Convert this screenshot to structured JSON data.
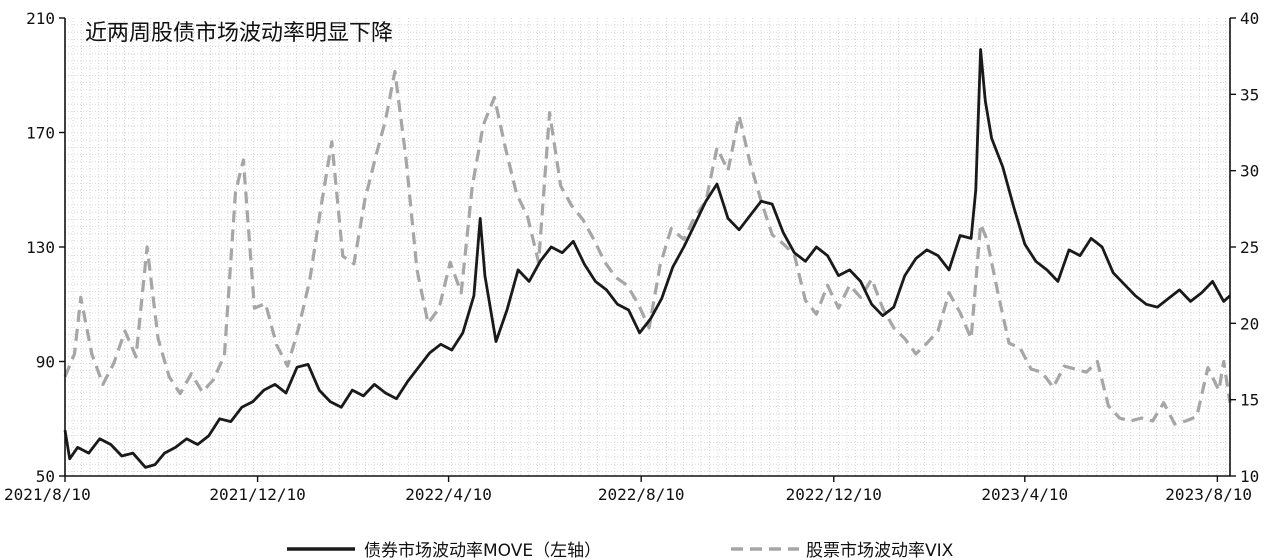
{
  "chart_data": {
    "type": "line",
    "title": "近两周股债市场波动率明显下降",
    "x_ticks": [
      "2021/8/10",
      "2021/12/10",
      "2022/4/10",
      "2022/8/10",
      "2022/12/10",
      "2023/4/10",
      "2023/8/10"
    ],
    "x_range": [
      "2021/8/10",
      "2023/8/18"
    ],
    "y_left": {
      "ylim": [
        50,
        210
      ],
      "ticks": [
        50,
        90,
        130,
        170,
        210
      ]
    },
    "y_right": {
      "ylim": [
        10,
        40
      ],
      "ticks": [
        10,
        15,
        20,
        25,
        30,
        35,
        40
      ]
    },
    "grid": true,
    "legend_position": "bottom",
    "series": [
      {
        "name": "债券市场波动率MOVE（左轴）",
        "axis": "left",
        "color": "#1a1a1a",
        "style": "solid",
        "points": [
          [
            "2021-08-10",
            66
          ],
          [
            "2021-08-13",
            56
          ],
          [
            "2021-08-18",
            60
          ],
          [
            "2021-08-25",
            58
          ],
          [
            "2021-09-01",
            63
          ],
          [
            "2021-09-08",
            61
          ],
          [
            "2021-09-15",
            57
          ],
          [
            "2021-09-22",
            58
          ],
          [
            "2021-09-30",
            53
          ],
          [
            "2021-10-06",
            54
          ],
          [
            "2021-10-12",
            58
          ],
          [
            "2021-10-19",
            60
          ],
          [
            "2021-10-26",
            63
          ],
          [
            "2021-11-02",
            61
          ],
          [
            "2021-11-09",
            64
          ],
          [
            "2021-11-16",
            70
          ],
          [
            "2021-11-23",
            69
          ],
          [
            "2021-11-30",
            74
          ],
          [
            "2021-12-07",
            76
          ],
          [
            "2021-12-14",
            80
          ],
          [
            "2021-12-21",
            82
          ],
          [
            "2021-12-28",
            79
          ],
          [
            "2022-01-04",
            88
          ],
          [
            "2022-01-11",
            89
          ],
          [
            "2022-01-18",
            80
          ],
          [
            "2022-01-25",
            76
          ],
          [
            "2022-02-01",
            74
          ],
          [
            "2022-02-08",
            80
          ],
          [
            "2022-02-15",
            78
          ],
          [
            "2022-02-22",
            82
          ],
          [
            "2022-03-01",
            79
          ],
          [
            "2022-03-08",
            77
          ],
          [
            "2022-03-15",
            83
          ],
          [
            "2022-03-22",
            88
          ],
          [
            "2022-03-29",
            93
          ],
          [
            "2022-04-05",
            96
          ],
          [
            "2022-04-12",
            94
          ],
          [
            "2022-04-19",
            100
          ],
          [
            "2022-04-26",
            113
          ],
          [
            "2022-04-30",
            140
          ],
          [
            "2022-05-03",
            120
          ],
          [
            "2022-05-10",
            97
          ],
          [
            "2022-05-17",
            108
          ],
          [
            "2022-05-24",
            122
          ],
          [
            "2022-05-31",
            118
          ],
          [
            "2022-06-07",
            125
          ],
          [
            "2022-06-14",
            130
          ],
          [
            "2022-06-21",
            128
          ],
          [
            "2022-06-28",
            132
          ],
          [
            "2022-07-05",
            124
          ],
          [
            "2022-07-12",
            118
          ],
          [
            "2022-07-19",
            115
          ],
          [
            "2022-07-26",
            110
          ],
          [
            "2022-08-02",
            108
          ],
          [
            "2022-08-09",
            100
          ],
          [
            "2022-08-16",
            105
          ],
          [
            "2022-08-23",
            112
          ],
          [
            "2022-08-30",
            123
          ],
          [
            "2022-09-06",
            130
          ],
          [
            "2022-09-13",
            138
          ],
          [
            "2022-09-20",
            146
          ],
          [
            "2022-09-27",
            152
          ],
          [
            "2022-10-04",
            140
          ],
          [
            "2022-10-11",
            136
          ],
          [
            "2022-10-18",
            141
          ],
          [
            "2022-10-25",
            146
          ],
          [
            "2022-11-01",
            145
          ],
          [
            "2022-11-08",
            135
          ],
          [
            "2022-11-15",
            128
          ],
          [
            "2022-11-22",
            125
          ],
          [
            "2022-11-29",
            130
          ],
          [
            "2022-12-06",
            127
          ],
          [
            "2022-12-13",
            120
          ],
          [
            "2022-12-20",
            122
          ],
          [
            "2022-12-27",
            118
          ],
          [
            "2023-01-03",
            110
          ],
          [
            "2023-01-10",
            106
          ],
          [
            "2023-01-17",
            109
          ],
          [
            "2023-01-24",
            120
          ],
          [
            "2023-01-31",
            126
          ],
          [
            "2023-02-07",
            129
          ],
          [
            "2023-02-14",
            127
          ],
          [
            "2023-02-21",
            122
          ],
          [
            "2023-02-28",
            134
          ],
          [
            "2023-03-07",
            133
          ],
          [
            "2023-03-10",
            150
          ],
          [
            "2023-03-13",
            199
          ],
          [
            "2023-03-16",
            181
          ],
          [
            "2023-03-20",
            168
          ],
          [
            "2023-03-27",
            158
          ],
          [
            "2023-04-03",
            144
          ],
          [
            "2023-04-10",
            131
          ],
          [
            "2023-04-17",
            125
          ],
          [
            "2023-04-24",
            122
          ],
          [
            "2023-05-01",
            118
          ],
          [
            "2023-05-08",
            129
          ],
          [
            "2023-05-15",
            127
          ],
          [
            "2023-05-22",
            133
          ],
          [
            "2023-05-29",
            130
          ],
          [
            "2023-06-05",
            121
          ],
          [
            "2023-06-12",
            117
          ],
          [
            "2023-06-19",
            113
          ],
          [
            "2023-06-26",
            110
          ],
          [
            "2023-07-03",
            109
          ],
          [
            "2023-07-10",
            112
          ],
          [
            "2023-07-17",
            115
          ],
          [
            "2023-07-24",
            111
          ],
          [
            "2023-07-31",
            114
          ],
          [
            "2023-08-07",
            118
          ],
          [
            "2023-08-14",
            111
          ],
          [
            "2023-08-18",
            113
          ]
        ]
      },
      {
        "name": "股票市场波动率VIX",
        "axis": "right",
        "color": "#a6a6a6",
        "style": "dashed",
        "points": [
          [
            "2021-08-10",
            16.5
          ],
          [
            "2021-08-16",
            18
          ],
          [
            "2021-08-20",
            21.7
          ],
          [
            "2021-08-27",
            18
          ],
          [
            "2021-09-03",
            16
          ],
          [
            "2021-09-10",
            17.4
          ],
          [
            "2021-09-17",
            19.5
          ],
          [
            "2021-09-24",
            17.8
          ],
          [
            "2021-10-01",
            25
          ],
          [
            "2021-10-08",
            19
          ],
          [
            "2021-10-15",
            16.5
          ],
          [
            "2021-10-22",
            15.4
          ],
          [
            "2021-10-29",
            16.7
          ],
          [
            "2021-11-05",
            15.5
          ],
          [
            "2021-11-12",
            16.3
          ],
          [
            "2021-11-19",
            17.9
          ],
          [
            "2021-11-26",
            28.6
          ],
          [
            "2021-12-01",
            30.7
          ],
          [
            "2021-12-08",
            21
          ],
          [
            "2021-12-15",
            21.3
          ],
          [
            "2021-12-22",
            18.6
          ],
          [
            "2021-12-29",
            17.2
          ],
          [
            "2022-01-05",
            19.7
          ],
          [
            "2022-01-12",
            22.8
          ],
          [
            "2022-01-19",
            27.5
          ],
          [
            "2022-01-26",
            31.9
          ],
          [
            "2022-02-02",
            24.4
          ],
          [
            "2022-02-09",
            23.9
          ],
          [
            "2022-02-16",
            28.1
          ],
          [
            "2022-02-23",
            31
          ],
          [
            "2022-03-01",
            33.3
          ],
          [
            "2022-03-07",
            36.5
          ],
          [
            "2022-03-14",
            30.8
          ],
          [
            "2022-03-21",
            23.5
          ],
          [
            "2022-03-28",
            20
          ],
          [
            "2022-04-04",
            21
          ],
          [
            "2022-04-11",
            24
          ],
          [
            "2022-04-18",
            22
          ],
          [
            "2022-04-25",
            29
          ],
          [
            "2022-05-02",
            33
          ],
          [
            "2022-05-09",
            34.8
          ],
          [
            "2022-05-16",
            31.5
          ],
          [
            "2022-05-23",
            28.5
          ],
          [
            "2022-05-30",
            27
          ],
          [
            "2022-06-06",
            24
          ],
          [
            "2022-06-13",
            33.8
          ],
          [
            "2022-06-20",
            29
          ],
          [
            "2022-06-27",
            27.7
          ],
          [
            "2022-07-04",
            26.8
          ],
          [
            "2022-07-11",
            25.5
          ],
          [
            "2022-07-18",
            24
          ],
          [
            "2022-07-25",
            23
          ],
          [
            "2022-08-01",
            22.5
          ],
          [
            "2022-08-08",
            21.3
          ],
          [
            "2022-08-15",
            19.7
          ],
          [
            "2022-08-22",
            23.8
          ],
          [
            "2022-08-29",
            26.2
          ],
          [
            "2022-09-06",
            25.5
          ],
          [
            "2022-09-13",
            27
          ],
          [
            "2022-09-20",
            28
          ],
          [
            "2022-09-27",
            31.5
          ],
          [
            "2022-10-04",
            30
          ],
          [
            "2022-10-11",
            33.6
          ],
          [
            "2022-10-18",
            30.5
          ],
          [
            "2022-10-25",
            28
          ],
          [
            "2022-11-01",
            25.8
          ],
          [
            "2022-11-08",
            25.2
          ],
          [
            "2022-11-15",
            24.5
          ],
          [
            "2022-11-22",
            21.5
          ],
          [
            "2022-11-29",
            20.6
          ],
          [
            "2022-12-06",
            22.5
          ],
          [
            "2022-12-13",
            21
          ],
          [
            "2022-12-20",
            22.5
          ],
          [
            "2022-12-27",
            21.7
          ],
          [
            "2023-01-03",
            22.9
          ],
          [
            "2023-01-10",
            21
          ],
          [
            "2023-01-17",
            19.7
          ],
          [
            "2023-01-24",
            19
          ],
          [
            "2023-01-31",
            18
          ],
          [
            "2023-02-07",
            18.7
          ],
          [
            "2023-02-14",
            19.5
          ],
          [
            "2023-02-21",
            22
          ],
          [
            "2023-02-28",
            20.7
          ],
          [
            "2023-03-07",
            19
          ],
          [
            "2023-03-13",
            26.5
          ],
          [
            "2023-03-17",
            25.5
          ],
          [
            "2023-03-24",
            22
          ],
          [
            "2023-03-31",
            18.7
          ],
          [
            "2023-04-07",
            18.4
          ],
          [
            "2023-04-14",
            17
          ],
          [
            "2023-04-21",
            16.8
          ],
          [
            "2023-04-28",
            15.8
          ],
          [
            "2023-05-05",
            17.2
          ],
          [
            "2023-05-12",
            17
          ],
          [
            "2023-05-19",
            16.8
          ],
          [
            "2023-05-26",
            17.5
          ],
          [
            "2023-06-02",
            14.6
          ],
          [
            "2023-06-09",
            13.8
          ],
          [
            "2023-06-16",
            13.6
          ],
          [
            "2023-06-23",
            13.8
          ],
          [
            "2023-06-30",
            13.6
          ],
          [
            "2023-07-07",
            14.8
          ],
          [
            "2023-07-14",
            13.4
          ],
          [
            "2023-07-21",
            13.6
          ],
          [
            "2023-07-28",
            13.9
          ],
          [
            "2023-08-04",
            17.1
          ],
          [
            "2023-08-11",
            15.6
          ],
          [
            "2023-08-14",
            17.5
          ],
          [
            "2023-08-18",
            14.8
          ]
        ]
      }
    ]
  }
}
